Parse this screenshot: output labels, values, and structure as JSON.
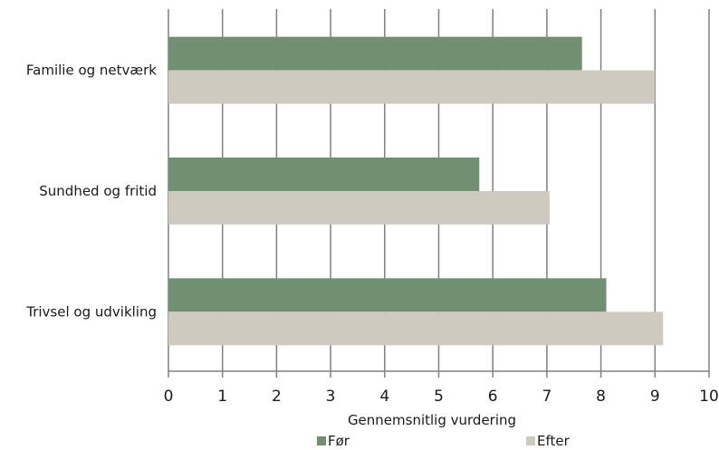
{
  "chart_data": {
    "type": "bar",
    "orientation": "horizontal",
    "categories": [
      "Familie og netværk",
      "Sundhed og fritid",
      "Trivsel og udvikling"
    ],
    "series": [
      {
        "name": "Før",
        "color": "#718f71",
        "values": [
          7.65,
          5.75,
          8.1
        ]
      },
      {
        "name": "Efter",
        "color": "#cfcac0",
        "values": [
          9.0,
          7.05,
          9.15
        ]
      }
    ],
    "xlabel": "Gennemsnitlig vurdering",
    "xlim": [
      0,
      10
    ],
    "xticks": [
      "0",
      "1",
      "2",
      "3",
      "4",
      "5",
      "6",
      "7",
      "8",
      "9",
      "10"
    ],
    "grid": true,
    "legend_position": "bottom",
    "gridline_color": "#808080"
  }
}
